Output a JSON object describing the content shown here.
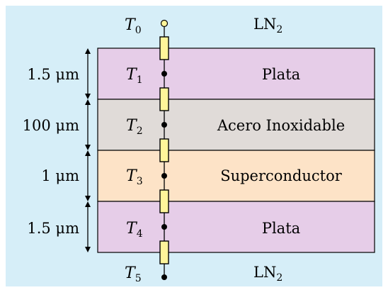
{
  "colors": {
    "background": "#d6eef8",
    "plata": "#e6cde8",
    "acero": "#e0dbd8",
    "superconductor": "#fde3c7",
    "resistor": "#fff59a",
    "frame": "#000000"
  },
  "top": {
    "temp": "T",
    "temp_sub": "0",
    "medium": "LN",
    "medium_sub": "2"
  },
  "bottom": {
    "temp": "T",
    "temp_sub": "5",
    "medium": "LN",
    "medium_sub": "2"
  },
  "layers": [
    {
      "name": "Plata",
      "thickness": "1.5 μm",
      "temp": "T",
      "temp_sub": "1",
      "color_key": "plata"
    },
    {
      "name": "Acero Inoxidable",
      "thickness": "100 μm",
      "temp": "T",
      "temp_sub": "2",
      "color_key": "acero"
    },
    {
      "name": "Superconductor",
      "thickness": "1 μm",
      "temp": "T",
      "temp_sub": "3",
      "color_key": "superconductor"
    },
    {
      "name": "Plata",
      "thickness": "1.5 μm",
      "temp": "T",
      "temp_sub": "4",
      "color_key": "plata"
    }
  ]
}
